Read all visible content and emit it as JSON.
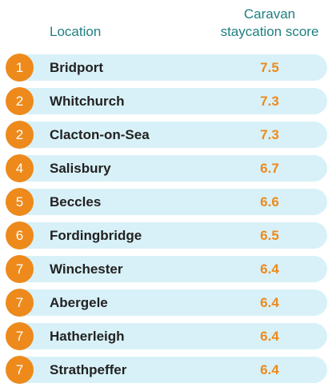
{
  "header": {
    "location_label": "Location",
    "score_label_line1": "Caravan",
    "score_label_line2": "staycation score"
  },
  "colors": {
    "accent_orange": "#ed8a1b",
    "header_teal": "#1f7f82",
    "row_band": "#d8f1f8"
  },
  "chart_data": {
    "type": "table",
    "columns": [
      "Location",
      "Caravan staycation score"
    ],
    "rows": [
      {
        "rank": "1",
        "location": "Bridport",
        "score": "7.5"
      },
      {
        "rank": "2",
        "location": "Whitchurch",
        "score": "7.3"
      },
      {
        "rank": "2",
        "location": "Clacton-on-Sea",
        "score": "7.3"
      },
      {
        "rank": "4",
        "location": "Salisbury",
        "score": "6.7"
      },
      {
        "rank": "5",
        "location": "Beccles",
        "score": "6.6"
      },
      {
        "rank": "6",
        "location": "Fordingbridge",
        "score": "6.5"
      },
      {
        "rank": "7",
        "location": "Winchester",
        "score": "6.4"
      },
      {
        "rank": "7",
        "location": "Abergele",
        "score": "6.4"
      },
      {
        "rank": "7",
        "location": "Hatherleigh",
        "score": "6.4"
      },
      {
        "rank": "7",
        "location": "Strathpeffer",
        "score": "6.4"
      }
    ]
  }
}
